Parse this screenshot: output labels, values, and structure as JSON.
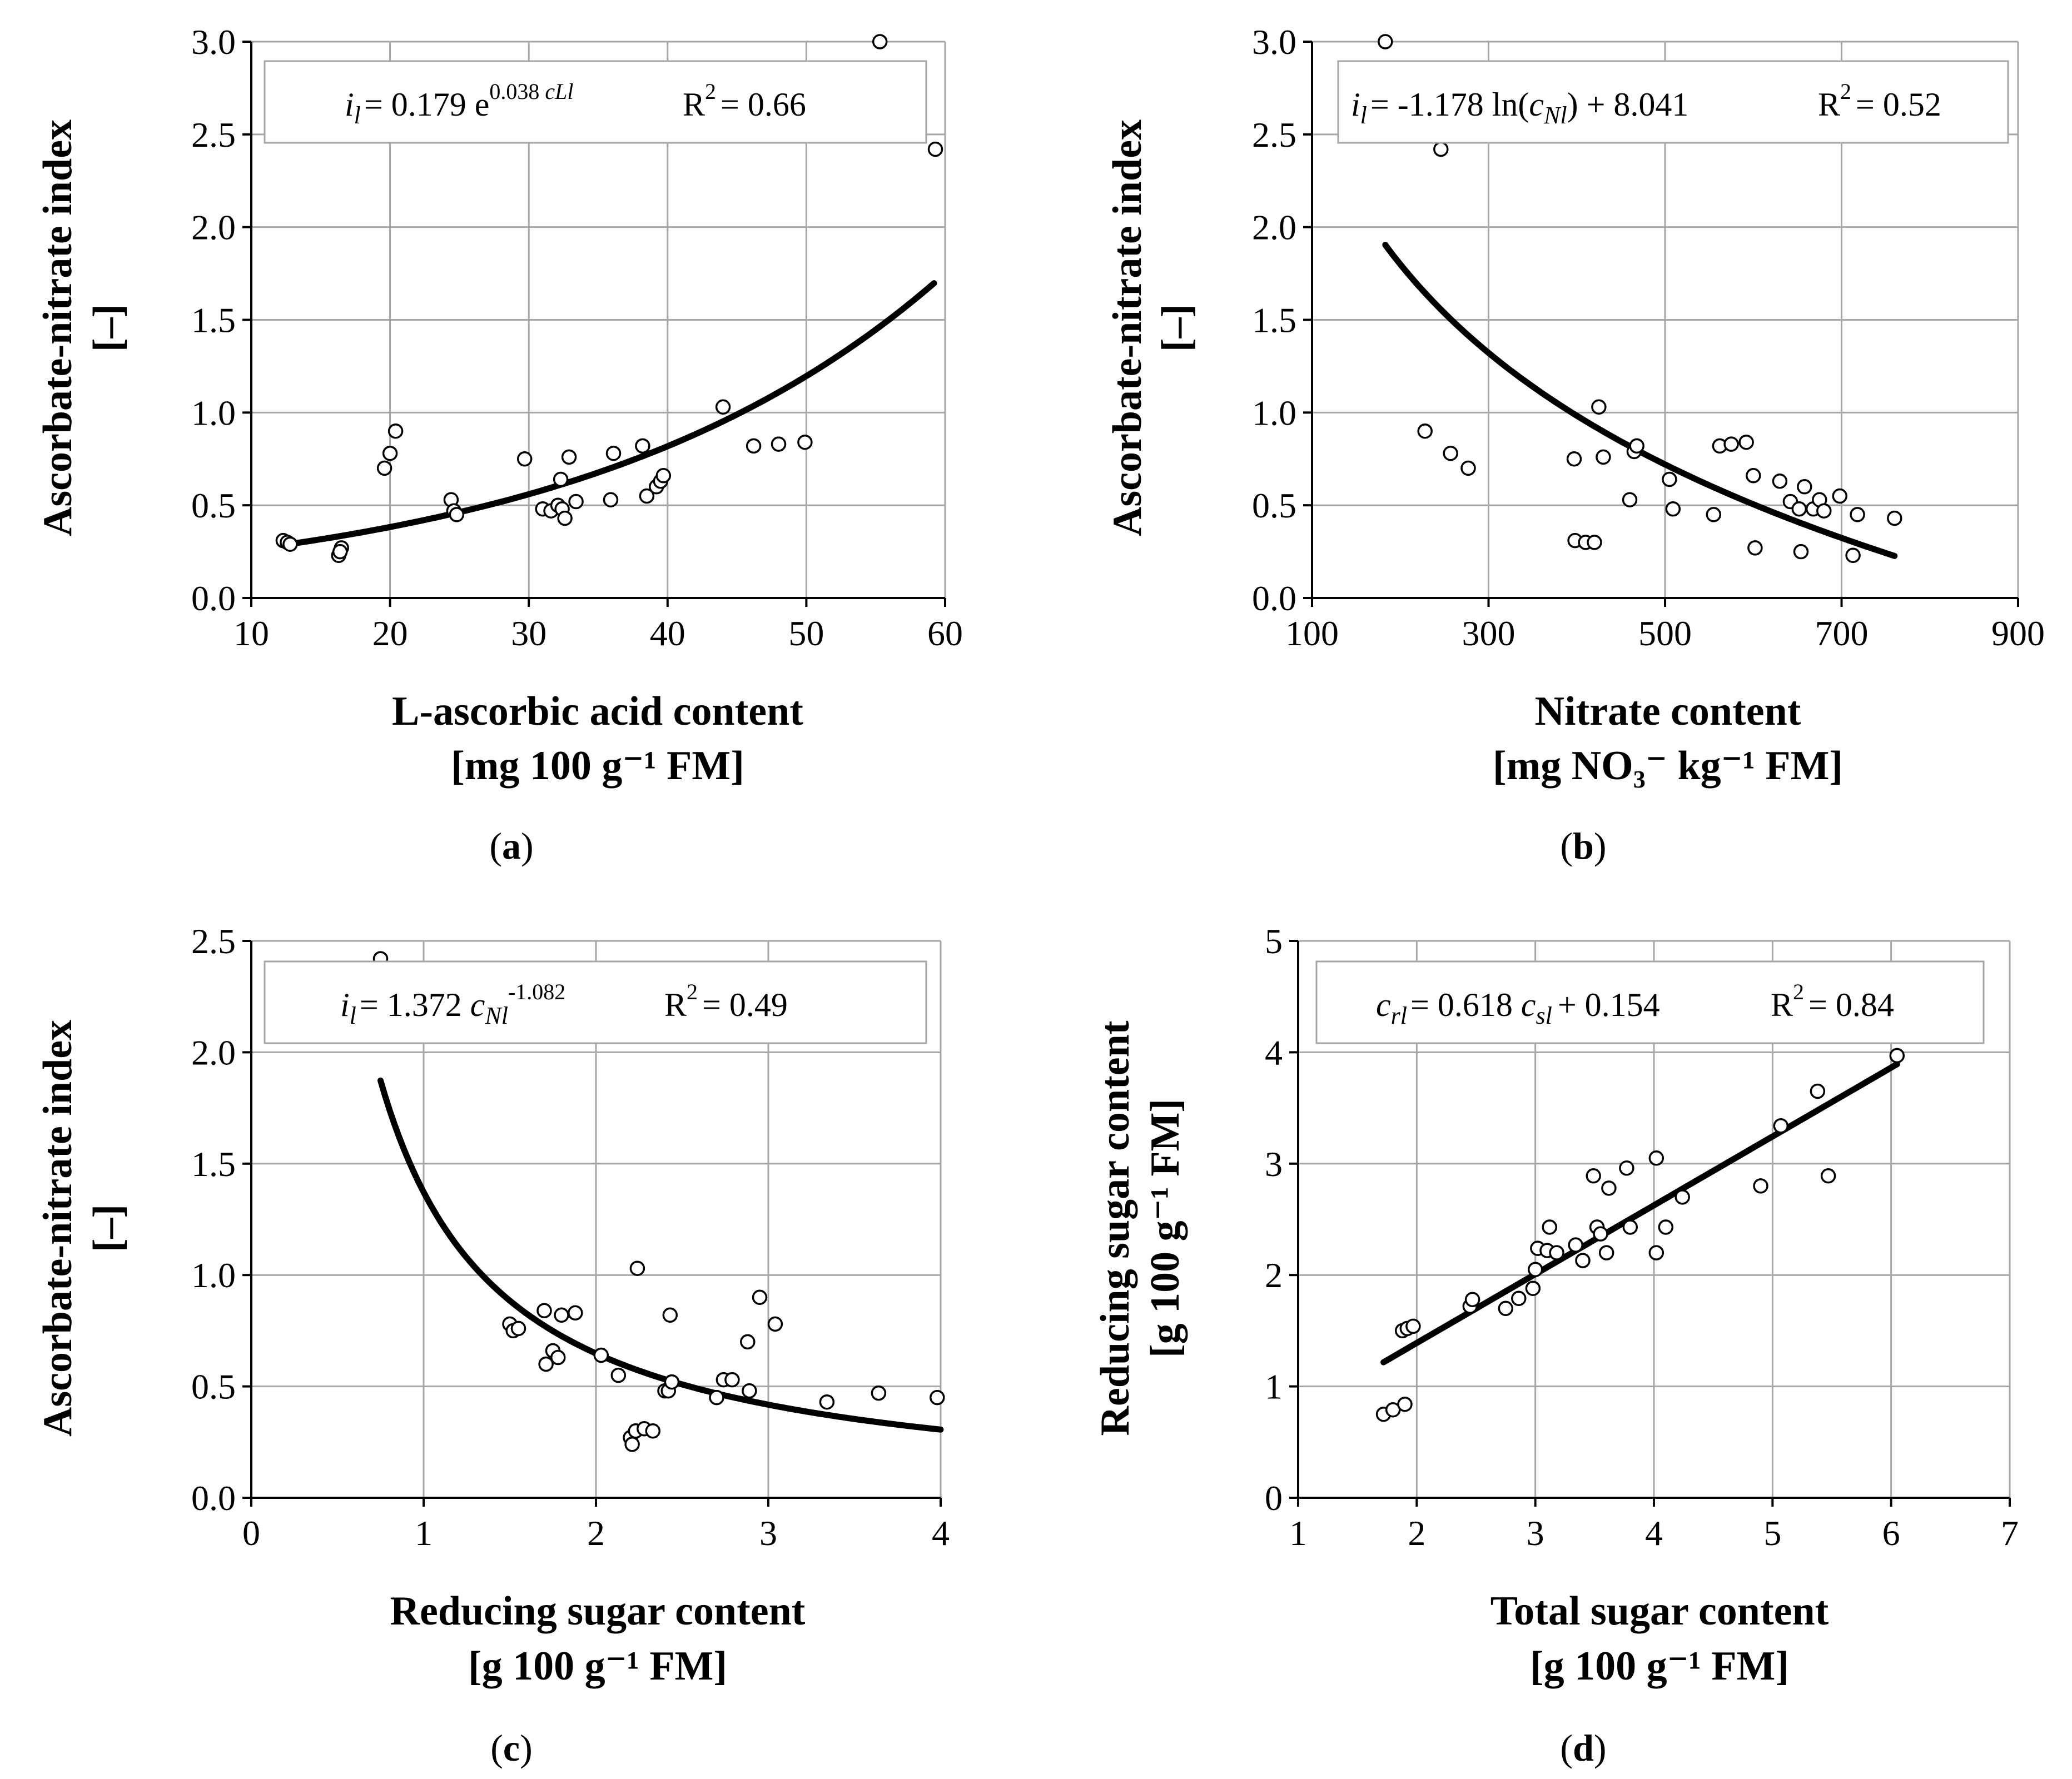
{
  "colors": {
    "curve": "#000000",
    "grid": "#a6a6a6",
    "marker_fill": "#ffffff",
    "marker_stroke": "#000000"
  },
  "chart_data": [
    {
      "id": "a",
      "type": "scatter",
      "panel_label": "a",
      "equation": {
        "lhs": "i",
        "lhs_sub": "l",
        "coef": "= 0.179 e",
        "exp": "0.038 ",
        "exp_var": "cLl",
        "r2_prefix": "R",
        "r2_sup": "2",
        "r2_value": "= 0.66"
      },
      "xlabel": [
        "L-ascorbic acid content",
        "[mg 100 g⁻¹ FM]"
      ],
      "ylabel": [
        "Ascorbate-nitrate index",
        "[–]"
      ],
      "xlim": [
        10,
        60
      ],
      "ylim": [
        0,
        3
      ],
      "xticks": [
        10,
        20,
        30,
        40,
        50,
        60
      ],
      "yticks": [
        0,
        0.5,
        1,
        1.5,
        2,
        2.5,
        3
      ],
      "xtick_labels": [
        "10",
        "20",
        "30",
        "40",
        "50",
        "60"
      ],
      "ytick_labels": [
        "0.0",
        "0.5",
        "1.0",
        "1.5",
        "2.0",
        "2.5",
        "3.0"
      ],
      "fit": {
        "model": "exp",
        "a": 0.179,
        "b": 0.038,
        "x_range": [
          12.5,
          59.2
        ]
      },
      "points": [
        [
          12.3,
          0.31
        ],
        [
          12.6,
          0.3
        ],
        [
          12.8,
          0.29
        ],
        [
          16.3,
          0.23
        ],
        [
          16.5,
          0.27
        ],
        [
          16.4,
          0.25
        ],
        [
          19.6,
          0.7
        ],
        [
          20,
          0.78
        ],
        [
          20.4,
          0.9
        ],
        [
          24.4,
          0.53
        ],
        [
          24.6,
          0.47
        ],
        [
          24.8,
          0.45
        ],
        [
          29.7,
          0.75
        ],
        [
          31,
          0.48
        ],
        [
          31.6,
          0.47
        ],
        [
          32.1,
          0.5
        ],
        [
          32.3,
          0.64
        ],
        [
          32.4,
          0.48
        ],
        [
          32.6,
          0.43
        ],
        [
          32.9,
          0.76
        ],
        [
          33.4,
          0.52
        ],
        [
          35.9,
          0.53
        ],
        [
          36.1,
          0.78
        ],
        [
          38.2,
          0.82
        ],
        [
          38.5,
          0.55
        ],
        [
          39.2,
          0.6
        ],
        [
          39.5,
          0.63
        ],
        [
          39.7,
          0.66
        ],
        [
          44,
          1.03
        ],
        [
          46.2,
          0.82
        ],
        [
          48,
          0.83
        ],
        [
          49.9,
          0.84
        ],
        [
          55.3,
          3.0
        ],
        [
          59.3,
          2.42
        ]
      ]
    },
    {
      "id": "b",
      "type": "scatter",
      "panel_label": "b",
      "equation": {
        "lhs": "i",
        "lhs_sub": "l",
        "mid": "= -1.178 ln(",
        "var": "c",
        "var_sub": "Nl",
        "tail": ") + 8.041",
        "r2_prefix": "R",
        "r2_sup": "2",
        "r2_value": "= 0.52"
      },
      "xlabel": [
        "Nitrate content",
        "[mg NO₃⁻ kg⁻¹ FM]"
      ],
      "ylabel": [
        "Ascorbate-nitrate index",
        "[–]"
      ],
      "xlim": [
        100,
        900
      ],
      "ylim": [
        0,
        3
      ],
      "xticks": [
        100,
        300,
        500,
        700,
        900
      ],
      "yticks": [
        0,
        0.5,
        1,
        1.5,
        2,
        2.5,
        3
      ],
      "xtick_labels": [
        "100",
        "300",
        "500",
        "700",
        "900"
      ],
      "ytick_labels": [
        "0.0",
        "0.5",
        "1.0",
        "1.5",
        "2.0",
        "2.5",
        "3.0"
      ],
      "fit": {
        "model": "log",
        "a": -1.178,
        "b": 8.041,
        "x_range": [
          183,
          760
        ]
      },
      "points": [
        [
          183,
          3.0
        ],
        [
          246,
          2.42
        ],
        [
          228,
          0.9
        ],
        [
          257,
          0.78
        ],
        [
          277,
          0.7
        ],
        [
          398,
          0.31
        ],
        [
          410,
          0.3
        ],
        [
          420,
          0.3
        ],
        [
          397,
          0.75
        ],
        [
          425,
          1.03
        ],
        [
          430,
          0.76
        ],
        [
          460,
          0.53
        ],
        [
          465,
          0.79
        ],
        [
          468,
          0.82
        ],
        [
          505,
          0.64
        ],
        [
          509,
          0.48
        ],
        [
          555,
          0.45
        ],
        [
          562,
          0.82
        ],
        [
          575,
          0.83
        ],
        [
          592,
          0.84
        ],
        [
          600,
          0.66
        ],
        [
          602,
          0.27
        ],
        [
          630,
          0.63
        ],
        [
          642,
          0.52
        ],
        [
          652,
          0.48
        ],
        [
          654,
          0.25
        ],
        [
          658,
          0.6
        ],
        [
          668,
          0.48
        ],
        [
          675,
          0.53
        ],
        [
          680,
          0.47
        ],
        [
          698,
          0.55
        ],
        [
          713,
          0.23
        ],
        [
          718,
          0.45
        ],
        [
          760,
          0.43
        ]
      ]
    },
    {
      "id": "c",
      "type": "scatter",
      "panel_label": "c",
      "equation": {
        "lhs": "i",
        "lhs_sub": "l",
        "coef": "= 1.372 ",
        "var": "c",
        "var_sub": "Nl",
        "exp": "-1.082",
        "r2_prefix": "R",
        "r2_sup": "2",
        "r2_value": "= 0.49"
      },
      "xlabel": [
        "Reducing sugar content",
        "[g 100 g⁻¹ FM]"
      ],
      "ylabel": [
        "Ascorbate-nitrate index",
        "[–]"
      ],
      "xlim": [
        0,
        4
      ],
      "ylim": [
        0,
        2.5
      ],
      "xticks": [
        0,
        1,
        2,
        3,
        4
      ],
      "yticks": [
        0,
        0.5,
        1,
        1.5,
        2,
        2.5
      ],
      "xtick_labels": [
        "0",
        "1",
        "2",
        "3",
        "4"
      ],
      "ytick_labels": [
        "0.0",
        "0.5",
        "1.0",
        "1.5",
        "2.0",
        "2.5"
      ],
      "fit": {
        "model": "power",
        "a": 1.372,
        "b": -1.082,
        "x_range": [
          0.75,
          4.0
        ]
      },
      "points": [
        [
          0.75,
          2.42
        ],
        [
          1.5,
          0.78
        ],
        [
          1.52,
          0.75
        ],
        [
          1.55,
          0.76
        ],
        [
          1.7,
          0.84
        ],
        [
          1.71,
          0.6
        ],
        [
          1.75,
          0.66
        ],
        [
          1.78,
          0.63
        ],
        [
          1.8,
          0.82
        ],
        [
          1.88,
          0.83
        ],
        [
          2.03,
          0.64
        ],
        [
          2.13,
          0.55
        ],
        [
          2.2,
          0.27
        ],
        [
          2.21,
          0.24
        ],
        [
          2.23,
          0.3
        ],
        [
          2.24,
          1.03
        ],
        [
          2.28,
          0.31
        ],
        [
          2.33,
          0.3
        ],
        [
          2.4,
          0.48
        ],
        [
          2.42,
          0.48
        ],
        [
          2.43,
          0.82
        ],
        [
          2.44,
          0.52
        ],
        [
          2.7,
          0.45
        ],
        [
          2.74,
          0.53
        ],
        [
          2.79,
          0.53
        ],
        [
          2.88,
          0.7
        ],
        [
          2.89,
          0.48
        ],
        [
          2.95,
          0.9
        ],
        [
          3.04,
          0.78
        ],
        [
          3.34,
          0.43
        ],
        [
          3.64,
          0.47
        ],
        [
          3.98,
          0.45
        ]
      ]
    },
    {
      "id": "d",
      "type": "scatter",
      "panel_label": "d",
      "equation": {
        "lhs": "c",
        "lhs_sub": "rl",
        "mid": "= 0.618 ",
        "var": "c",
        "var_sub": "sl",
        "tail": "+ 0.154",
        "r2_prefix": "R",
        "r2_sup": "2",
        "r2_value": "= 0.84"
      },
      "xlabel": [
        "Total sugar content",
        "[g 100 g⁻¹ FM]"
      ],
      "ylabel": [
        "Reducing sugar content",
        "[g 100 g⁻¹ FM]"
      ],
      "xlim": [
        1,
        7
      ],
      "ylim": [
        0,
        5
      ],
      "xticks": [
        1,
        2,
        3,
        4,
        5,
        6,
        7
      ],
      "yticks": [
        0,
        1,
        2,
        3,
        4,
        5
      ],
      "xtick_labels": [
        "1",
        "2",
        "3",
        "4",
        "5",
        "6",
        "7"
      ],
      "ytick_labels": [
        "0",
        "1",
        "2",
        "3",
        "4",
        "5"
      ],
      "fit": {
        "model": "linear",
        "a": 0.618,
        "b": 0.154,
        "x_range": [
          1.72,
          6.05
        ]
      },
      "points": [
        [
          1.72,
          0.75
        ],
        [
          1.8,
          0.79
        ],
        [
          1.9,
          0.84
        ],
        [
          1.88,
          1.5
        ],
        [
          1.92,
          1.52
        ],
        [
          1.97,
          1.54
        ],
        [
          2.45,
          1.72
        ],
        [
          2.47,
          1.78
        ],
        [
          2.75,
          1.7
        ],
        [
          2.86,
          1.79
        ],
        [
          2.98,
          1.88
        ],
        [
          3.0,
          2.05
        ],
        [
          3.02,
          2.24
        ],
        [
          3.1,
          2.22
        ],
        [
          3.12,
          2.43
        ],
        [
          3.18,
          2.2
        ],
        [
          3.34,
          2.27
        ],
        [
          3.4,
          2.13
        ],
        [
          3.49,
          2.89
        ],
        [
          3.52,
          2.43
        ],
        [
          3.55,
          2.37
        ],
        [
          3.6,
          2.2
        ],
        [
          3.62,
          2.78
        ],
        [
          3.77,
          2.96
        ],
        [
          3.8,
          2.43
        ],
        [
          4.02,
          3.05
        ],
        [
          4.02,
          2.2
        ],
        [
          4.1,
          2.43
        ],
        [
          4.24,
          2.7
        ],
        [
          4.9,
          2.8
        ],
        [
          5.07,
          3.34
        ],
        [
          5.38,
          3.65
        ],
        [
          5.47,
          2.89
        ],
        [
          6.05,
          3.97
        ]
      ]
    }
  ]
}
